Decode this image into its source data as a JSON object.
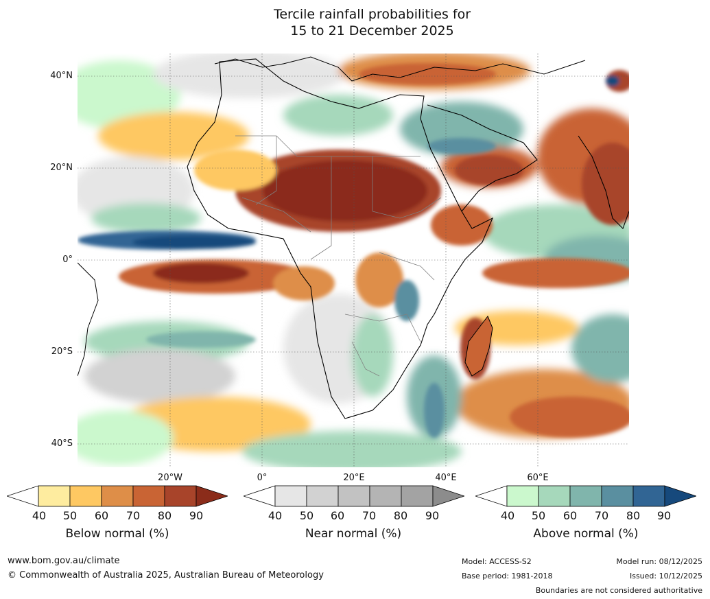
{
  "title": {
    "line1": "Tercile rainfall probabilities for",
    "line2": "15 to 21 December 2025"
  },
  "map": {
    "lat_labels": [
      "40°N",
      "20°N",
      "0°",
      "20°S",
      "40°S"
    ],
    "lon_labels": [
      "20°W",
      "0°",
      "20°E",
      "40°E",
      "60°E"
    ]
  },
  "legends": [
    {
      "title": "Below normal (%)",
      "ticks": [
        "40",
        "50",
        "60",
        "70",
        "80",
        "90"
      ],
      "colors": [
        "#ffffff",
        "#feec9f",
        "#fec862",
        "#de8e48",
        "#c96434",
        "#a8442a",
        "#8b2c1a"
      ]
    },
    {
      "title": "Near normal (%)",
      "ticks": [
        "40",
        "50",
        "60",
        "70",
        "80",
        "90"
      ],
      "colors": [
        "#ffffff",
        "#e6e6e6",
        "#d2d2d2",
        "#c2c2c2",
        "#b4b4b4",
        "#a3a3a3",
        "#8c8c8c"
      ]
    },
    {
      "title": "Above normal (%)",
      "ticks": [
        "40",
        "50",
        "60",
        "70",
        "80",
        "90"
      ],
      "colors": [
        "#ffffff",
        "#cbf8cd",
        "#a6d8bb",
        "#80b5ac",
        "#5a8fa0",
        "#316594",
        "#16497c"
      ]
    }
  ],
  "footer": {
    "url": "www.bom.gov.au/climate",
    "copyright": "© Commonwealth of Australia 2025, Australian Bureau of Meteorology",
    "model": "Model: ACCESS-S2",
    "base_period": "Base period: 1981-2018",
    "model_run": "Model run: 08/12/2025",
    "issued": "Issued: 10/12/2025",
    "disclaimer": "Boundaries are not considered authoritative"
  }
}
